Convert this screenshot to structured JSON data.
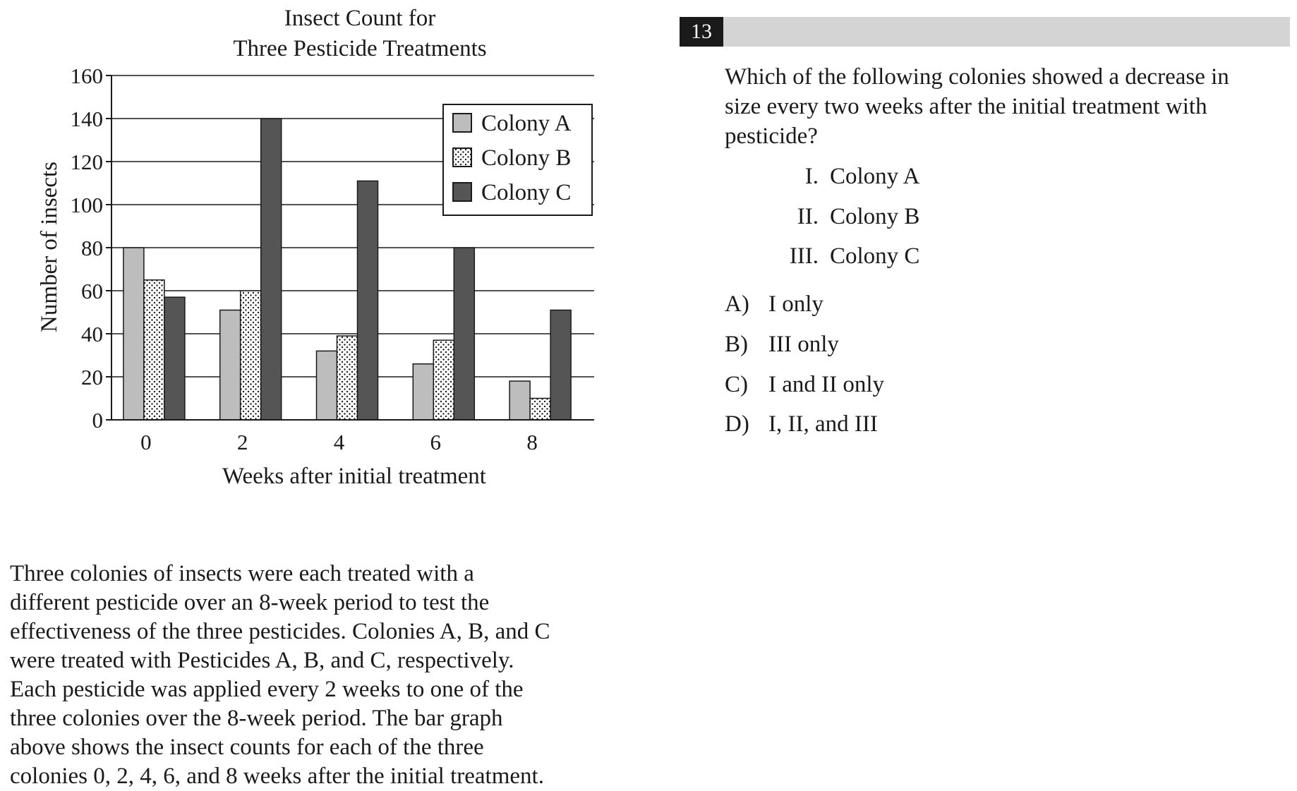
{
  "chart_data": {
    "type": "bar",
    "title": [
      "Insect Count for",
      "Three Pesticide Treatments"
    ],
    "xlabel": "Weeks after initial treatment",
    "ylabel": "Number of insects",
    "categories": [
      "0",
      "2",
      "4",
      "6",
      "8"
    ],
    "ylim": [
      0,
      160
    ],
    "yticks": [
      "0",
      "20",
      "40",
      "60",
      "80",
      "100",
      "120",
      "140",
      "160"
    ],
    "grid": "horizontal",
    "legend_position": "top-right",
    "series": [
      {
        "name": "Colony A",
        "pattern": "solid-light-gray",
        "color": "#bdbdbd",
        "values": [
          80,
          51,
          32,
          26,
          18
        ]
      },
      {
        "name": "Colony B",
        "pattern": "dotted",
        "color": "#ffffff",
        "values": [
          65,
          60,
          39,
          37,
          10
        ]
      },
      {
        "name": "Colony C",
        "pattern": "solid-dark-gray",
        "color": "#555555",
        "values": [
          57,
          140,
          111,
          80,
          51
        ]
      }
    ]
  },
  "passage": [
    "Three colonies of insects were each treated with a",
    "different pesticide over an 8-week period to test the",
    "effectiveness of the three pesticides. Colonies A, B, and C",
    "were treated with Pesticides A, B, and C, respectively.",
    "Each pesticide was applied every 2 weeks to one of the",
    "three colonies over the 8-week period. The bar graph",
    "above shows the insect counts for each of the three",
    "colonies 0, 2, 4, 6, and 8 weeks after the initial treatment."
  ],
  "question": {
    "number": "13",
    "stem": [
      "Which of the following colonies showed a decrease in",
      "size every two weeks after the initial treatment with",
      "pesticide?"
    ],
    "statements": [
      {
        "num": "I.",
        "text": "Colony A"
      },
      {
        "num": "II.",
        "text": "Colony B"
      },
      {
        "num": "III.",
        "text": "Colony C"
      }
    ],
    "choices": [
      {
        "letter": "A)",
        "text": "I only"
      },
      {
        "letter": "B)",
        "text": "III only"
      },
      {
        "letter": "C)",
        "text": "I and II only"
      },
      {
        "letter": "D)",
        "text": "I, II, and III"
      }
    ]
  },
  "colors": {
    "header_bar": "#d4d4d4",
    "number_box": "#1a1a1a",
    "text": "#1a1a1a"
  }
}
